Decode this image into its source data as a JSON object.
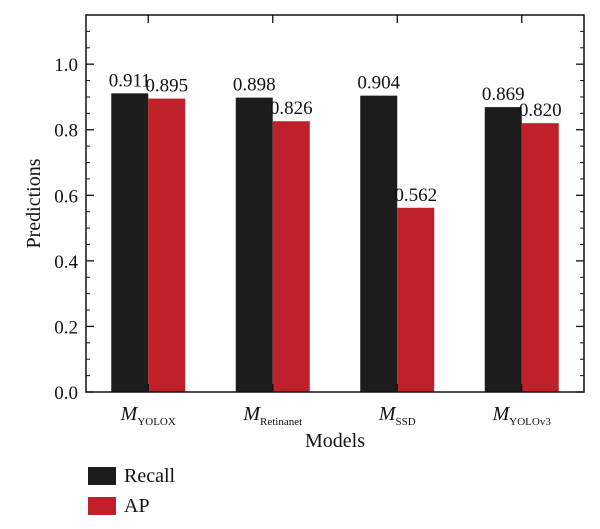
{
  "chart_data": {
    "type": "bar",
    "categories": [
      {
        "main": "M",
        "sub": "YOLOX"
      },
      {
        "main": "M",
        "sub": "Retinanet"
      },
      {
        "main": "M",
        "sub": "SSD"
      },
      {
        "main": "M",
        "sub": "YOLOv3"
      }
    ],
    "series": [
      {
        "name": "Recall",
        "color": "#1c1c1c",
        "values": [
          0.911,
          0.898,
          0.904,
          0.869
        ],
        "labels": [
          "0.911",
          "0.898",
          "0.904",
          "0.869"
        ]
      },
      {
        "name": "AP",
        "color": "#c0202a",
        "values": [
          0.895,
          0.826,
          0.562,
          0.82
        ],
        "labels": [
          "0.895",
          "0.826",
          "0.562",
          "0.820"
        ]
      }
    ],
    "title": "",
    "xlabel": "Models",
    "ylabel": "Predictions",
    "ylim": [
      0,
      1.15
    ],
    "yticks": [
      0.0,
      0.2,
      0.4,
      0.6,
      0.8,
      1.0
    ],
    "ytick_labels": [
      "0.0",
      "0.2",
      "0.4",
      "0.6",
      "0.8",
      "1.0"
    ],
    "grid": false,
    "legend_position": "bottom-left"
  }
}
